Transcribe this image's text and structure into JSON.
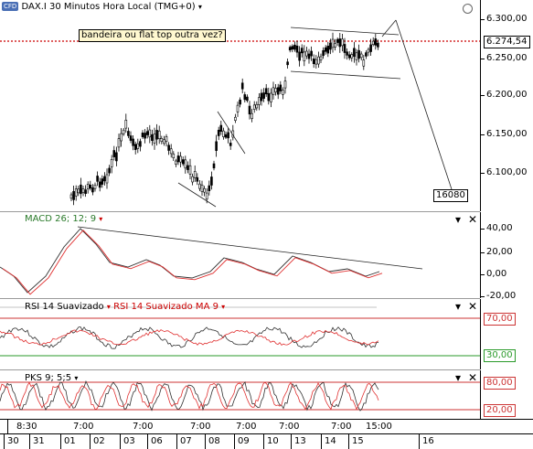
{
  "header": {
    "cfd_badge": "CFD",
    "instrument": "DAX.I",
    "period": "30 Minutos",
    "timezone": "Hora Local (TMG+0)",
    "dropdown_glyph": "▾"
  },
  "annotation": {
    "text": "bandeira ou flat top outra vez?"
  },
  "price_axis": {
    "ticks": [
      "6.300,00",
      "6.250,00",
      "6.200,00",
      "6.150,00",
      "6.100,00"
    ],
    "current_price": "6.274,54",
    "target_label": "16080"
  },
  "macd": {
    "title": "MACD 26; 12; 9",
    "ticks": [
      "40,00",
      "20,00",
      "0,00",
      "-20,00"
    ]
  },
  "rsi": {
    "title1": "RSI 14 Suavizado",
    "title2": "RSI 14 Suavizado MA 9",
    "ticks": [
      "70,00",
      "30,00"
    ]
  },
  "pks": {
    "title": "PKS 9; 5;5",
    "ticks": [
      "80,00",
      "20,00"
    ]
  },
  "time_axis": [
    "8:30",
    "7:00",
    "7:00",
    "7:00",
    "7:00",
    "7:00",
    "7:00",
    "15:00"
  ],
  "date_axis": [
    "30",
    "31",
    "01",
    "02",
    "03",
    "06",
    "07",
    "08",
    "09",
    "10",
    "13",
    "14",
    "15",
    "16"
  ],
  "colors": {
    "price_line": "#cc0000",
    "signal_line": "#e03030",
    "indicator_line": "#303030",
    "upper_band": "#cc3333",
    "lower_band": "#2a9a2a",
    "dropdown_red": "#cc0000",
    "macd_title": "#2a7a2a",
    "rsi_ma_title": "#cc0000"
  },
  "buttons": {
    "close": "✕",
    "gear": "▾"
  }
}
